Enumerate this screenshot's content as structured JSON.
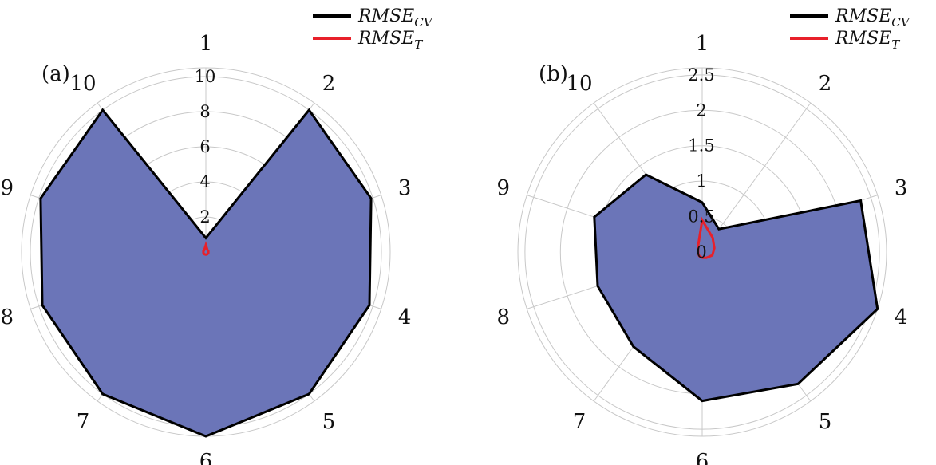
{
  "legend": {
    "cv": {
      "base": "RMSE",
      "sub": "CV",
      "color": "#000000"
    },
    "t": {
      "base": "RMSE",
      "sub": "T",
      "color": "#e8202a"
    }
  },
  "fill_color": "#6b75b8",
  "chart_data": [
    {
      "type": "radar",
      "panel": "(a)",
      "categories": [
        "1",
        "2",
        "3",
        "4",
        "5",
        "6",
        "7",
        "8",
        "9",
        "10"
      ],
      "rlim": [
        0,
        10.5
      ],
      "radial_ticks": [
        2,
        4,
        6,
        8,
        10
      ],
      "radial_tick_labels": [
        "2",
        "4",
        "6",
        "8",
        "10"
      ],
      "series": [
        {
          "key": "cv",
          "values": [
            0.8,
            10.0,
            9.9,
            9.8,
            10.0,
            10.5,
            10.0,
            9.8,
            9.9,
            10.0
          ]
        },
        {
          "key": "t",
          "values": [
            0.4,
            0.15,
            0.15,
            0.15,
            0.15,
            0.15,
            0.15,
            0.15,
            0.15,
            0.15
          ]
        }
      ]
    },
    {
      "type": "radar",
      "panel": "(b)",
      "categories": [
        "1",
        "2",
        "3",
        "4",
        "5",
        "6",
        "7",
        "8",
        "9",
        "10"
      ],
      "rlim": [
        0,
        2.6
      ],
      "radial_ticks": [
        0,
        0.5,
        1,
        1.5,
        2,
        2.5
      ],
      "radial_tick_labels": [
        "0",
        "0.5",
        "1",
        "1.5",
        "2",
        "2.5"
      ],
      "series": [
        {
          "key": "cv",
          "values": [
            0.7,
            0.4,
            2.35,
            2.6,
            2.3,
            2.1,
            1.65,
            1.55,
            1.6,
            1.35
          ]
        },
        {
          "key": "t",
          "values": [
            0.45,
            0.25,
            0.18,
            0.15,
            0.1,
            0.08,
            0.07,
            0.06,
            0.06,
            0.1
          ]
        }
      ]
    }
  ]
}
